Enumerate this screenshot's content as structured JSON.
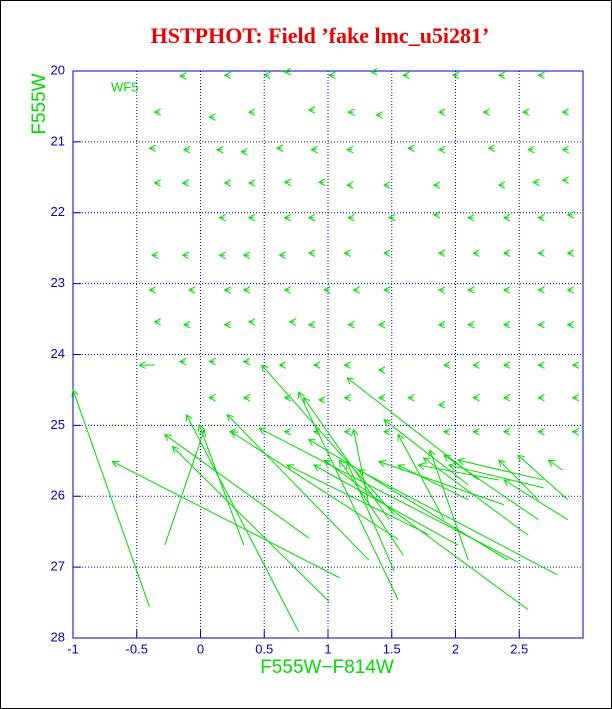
{
  "chart_data": {
    "type": "vector",
    "title": "HSTPHOT: Field ’fake lmc_u5i281’",
    "xlabel": "F555W−F814W",
    "ylabel": "F555W",
    "annotation": "WF5",
    "color": "#00dd00",
    "title_color": "#ee0000",
    "axis_color": "#0000cc",
    "grid": true,
    "xlim": [
      -1,
      3
    ],
    "ylim": [
      28,
      20
    ],
    "xticks": [
      -1,
      -0.5,
      0,
      0.5,
      1,
      1.5,
      2,
      2.5
    ],
    "yticks": [
      20,
      21,
      22,
      23,
      24,
      25,
      26,
      27,
      28
    ],
    "segments": [
      [
        -0.4,
        27.56,
        -1.0,
        24.5
      ],
      [
        1.09,
        27.15,
        -0.69,
        25.51
      ],
      [
        0.85,
        26.59,
        -0.28,
        25.13
      ],
      [
        1.01,
        27.49,
        -0.22,
        25.3
      ],
      [
        0.77,
        27.91,
        -0.11,
        24.85
      ],
      [
        0.34,
        26.69,
        -0.01,
        24.99
      ],
      [
        -0.28,
        26.69,
        0.03,
        25.06
      ],
      [
        1.32,
        26.9,
        0.21,
        24.85
      ],
      [
        1.52,
        26.26,
        0.48,
        24.15
      ],
      [
        2.49,
        26.93,
        0.46,
        25.04
      ],
      [
        1.55,
        26.61,
        0.24,
        25.09
      ],
      [
        1.55,
        27.46,
        0.77,
        24.53
      ],
      [
        1.48,
        26.33,
        0.81,
        24.61
      ],
      [
        1.79,
        26.54,
        0.68,
        25.56
      ],
      [
        2.41,
        26.9,
        0.85,
        25.2
      ],
      [
        2.02,
        26.69,
        0.89,
        25.56
      ],
      [
        2.57,
        27.6,
        0.97,
        25.49
      ],
      [
        2.18,
        25.77,
        1.15,
        24.33
      ],
      [
        1.59,
        26.83,
        1.09,
        25.49
      ],
      [
        1.52,
        27.06,
        1.15,
        25.52
      ],
      [
        1.32,
        26.12,
        1.2,
        25.06
      ],
      [
        2.8,
        27.11,
        1.24,
        25.63
      ],
      [
        2.38,
        26.12,
        1.4,
        25.51
      ],
      [
        2.1,
        25.84,
        1.44,
        24.92
      ],
      [
        1.91,
        26.33,
        1.55,
        25.13
      ],
      [
        2.1,
        26.05,
        1.55,
        25.56
      ],
      [
        2.34,
        25.77,
        1.71,
        25.56
      ],
      [
        2.57,
        26.55,
        1.75,
        25.46
      ],
      [
        2.1,
        26.9,
        1.8,
        25.35
      ],
      [
        2.65,
        26.33,
        1.91,
        25.42
      ],
      [
        2.69,
        25.88,
        1.95,
        25.56
      ],
      [
        2.69,
        25.77,
        2.02,
        25.49
      ],
      [
        2.65,
        26.05,
        2.34,
        25.49
      ],
      [
        2.88,
        26.33,
        2.38,
        25.77
      ],
      [
        2.84,
        25.63,
        2.73,
        25.49
      ],
      [
        2.88,
        26.05,
        2.49,
        25.42
      ],
      [
        -0.12,
        20.07,
        -0.16,
        20.07
      ],
      [
        0.23,
        20.06,
        0.19,
        20.06
      ],
      [
        0.54,
        20.06,
        0.5,
        20.06
      ],
      [
        0.7,
        20.01,
        0.66,
        20.01
      ],
      [
        1.05,
        20.06,
        1.01,
        20.06
      ],
      [
        1.38,
        20.01,
        1.34,
        20.01
      ],
      [
        1.63,
        20.06,
        1.59,
        20.06
      ],
      [
        2.02,
        20.06,
        1.98,
        20.06
      ],
      [
        2.38,
        20.06,
        2.34,
        20.06
      ],
      [
        2.69,
        20.06,
        2.65,
        20.06
      ],
      [
        -0.32,
        20.58,
        -0.36,
        20.58
      ],
      [
        0.11,
        20.65,
        0.07,
        20.65
      ],
      [
        0.42,
        20.58,
        0.38,
        20.58
      ],
      [
        0.89,
        20.55,
        0.85,
        20.55
      ],
      [
        1.2,
        20.58,
        1.16,
        20.58
      ],
      [
        1.42,
        20.62,
        1.38,
        20.62
      ],
      [
        1.91,
        20.58,
        1.87,
        20.58
      ],
      [
        2.26,
        20.58,
        2.22,
        20.58
      ],
      [
        2.57,
        20.58,
        2.53,
        20.58
      ],
      [
        2.88,
        20.58,
        2.84,
        20.58
      ],
      [
        -0.36,
        21.09,
        -0.4,
        21.09
      ],
      [
        -0.09,
        21.11,
        -0.13,
        21.11
      ],
      [
        0.17,
        21.11,
        0.13,
        21.11
      ],
      [
        0.36,
        21.14,
        0.32,
        21.14
      ],
      [
        0.64,
        21.09,
        0.6,
        21.09
      ],
      [
        0.91,
        21.11,
        0.87,
        21.11
      ],
      [
        1.19,
        21.11,
        1.15,
        21.11
      ],
      [
        1.67,
        21.09,
        1.63,
        21.09
      ],
      [
        1.91,
        21.11,
        1.87,
        21.11
      ],
      [
        2.3,
        21.09,
        2.26,
        21.09
      ],
      [
        2.61,
        21.11,
        2.57,
        21.11
      ],
      [
        2.88,
        21.11,
        2.84,
        21.11
      ],
      [
        -0.32,
        21.58,
        -0.36,
        21.58
      ],
      [
        -0.1,
        21.58,
        -0.14,
        21.58
      ],
      [
        0.23,
        21.58,
        0.19,
        21.58
      ],
      [
        0.42,
        21.58,
        0.38,
        21.58
      ],
      [
        0.7,
        21.57,
        0.66,
        21.57
      ],
      [
        0.97,
        21.57,
        0.93,
        21.57
      ],
      [
        1.19,
        21.61,
        1.15,
        21.61
      ],
      [
        1.48,
        21.61,
        1.44,
        21.61
      ],
      [
        1.87,
        21.61,
        1.83,
        21.61
      ],
      [
        2.38,
        21.61,
        2.34,
        21.61
      ],
      [
        2.65,
        21.57,
        2.61,
        21.57
      ],
      [
        2.88,
        21.54,
        2.84,
        21.54
      ],
      [
        0.19,
        22.07,
        0.15,
        22.07
      ],
      [
        0.42,
        22.07,
        0.38,
        22.07
      ],
      [
        0.7,
        22.07,
        0.66,
        22.07
      ],
      [
        0.89,
        22.07,
        0.85,
        22.07
      ],
      [
        1.2,
        22.07,
        1.16,
        22.07
      ],
      [
        1.52,
        22.07,
        1.48,
        22.07
      ],
      [
        1.87,
        22.03,
        1.83,
        22.03
      ],
      [
        2.14,
        22.07,
        2.1,
        22.07
      ],
      [
        2.42,
        22.07,
        2.38,
        22.07
      ],
      [
        2.69,
        22.07,
        2.65,
        22.07
      ],
      [
        2.92,
        22.03,
        2.88,
        22.03
      ],
      [
        -0.34,
        22.6,
        -0.38,
        22.6
      ],
      [
        -0.1,
        22.6,
        -0.14,
        22.6
      ],
      [
        0.19,
        22.6,
        0.15,
        22.6
      ],
      [
        0.38,
        22.6,
        0.34,
        22.6
      ],
      [
        0.66,
        22.6,
        0.62,
        22.6
      ],
      [
        0.89,
        22.57,
        0.85,
        22.57
      ],
      [
        1.17,
        22.57,
        1.13,
        22.57
      ],
      [
        1.48,
        22.57,
        1.44,
        22.57
      ],
      [
        1.91,
        22.57,
        1.87,
        22.57
      ],
      [
        2.18,
        22.57,
        2.14,
        22.57
      ],
      [
        2.42,
        22.57,
        2.38,
        22.57
      ],
      [
        2.69,
        22.57,
        2.65,
        22.57
      ],
      [
        2.92,
        22.57,
        2.88,
        22.57
      ],
      [
        -0.36,
        23.09,
        -0.4,
        23.09
      ],
      [
        -0.05,
        23.09,
        -0.09,
        23.09
      ],
      [
        0.23,
        23.09,
        0.19,
        23.09
      ],
      [
        0.38,
        23.09,
        0.34,
        23.09
      ],
      [
        0.7,
        23.09,
        0.66,
        23.09
      ],
      [
        1.01,
        23.09,
        0.97,
        23.09
      ],
      [
        1.24,
        23.09,
        1.2,
        23.09
      ],
      [
        1.48,
        23.09,
        1.44,
        23.09
      ],
      [
        1.91,
        23.09,
        1.87,
        23.09
      ],
      [
        2.14,
        23.09,
        2.1,
        23.09
      ],
      [
        2.42,
        23.09,
        2.38,
        23.09
      ],
      [
        2.69,
        23.09,
        2.65,
        23.09
      ],
      [
        2.92,
        23.09,
        2.88,
        23.09
      ],
      [
        -0.32,
        23.54,
        -0.36,
        23.54
      ],
      [
        -0.09,
        23.58,
        -0.13,
        23.58
      ],
      [
        0.23,
        23.58,
        0.19,
        23.58
      ],
      [
        0.42,
        23.54,
        0.38,
        23.54
      ],
      [
        0.74,
        23.54,
        0.7,
        23.54
      ],
      [
        0.89,
        23.58,
        0.85,
        23.58
      ],
      [
        1.2,
        23.58,
        1.16,
        23.58
      ],
      [
        1.44,
        23.58,
        1.4,
        23.58
      ],
      [
        1.91,
        23.58,
        1.87,
        23.58
      ],
      [
        2.14,
        23.58,
        2.1,
        23.58
      ],
      [
        2.42,
        23.58,
        2.38,
        23.58
      ],
      [
        2.69,
        23.58,
        2.65,
        23.58
      ],
      [
        2.92,
        23.58,
        2.88,
        23.58
      ],
      [
        -0.36,
        24.15,
        -0.48,
        24.15
      ],
      [
        -0.12,
        24.1,
        -0.16,
        24.1
      ],
      [
        0.11,
        24.1,
        0.07,
        24.1
      ],
      [
        0.38,
        24.1,
        0.34,
        24.1
      ],
      [
        0.66,
        24.15,
        0.62,
        24.15
      ],
      [
        0.93,
        24.15,
        0.89,
        24.15
      ],
      [
        1.17,
        24.15,
        1.13,
        24.15
      ],
      [
        1.44,
        24.22,
        1.4,
        24.22
      ],
      [
        1.95,
        24.15,
        1.91,
        24.15
      ],
      [
        2.18,
        24.15,
        2.14,
        24.15
      ],
      [
        2.42,
        24.15,
        2.38,
        24.15
      ],
      [
        2.69,
        24.15,
        2.65,
        24.15
      ],
      [
        2.96,
        24.15,
        2.92,
        24.15
      ],
      [
        0.11,
        24.61,
        0.07,
        24.61
      ],
      [
        0.38,
        24.61,
        0.34,
        24.61
      ],
      [
        0.7,
        24.61,
        0.66,
        24.61
      ],
      [
        0.97,
        24.64,
        0.93,
        24.64
      ],
      [
        1.17,
        24.61,
        1.13,
        24.61
      ],
      [
        1.44,
        24.61,
        1.4,
        24.61
      ],
      [
        1.67,
        24.61,
        1.63,
        24.61
      ],
      [
        1.91,
        24.71,
        1.87,
        24.71
      ],
      [
        2.18,
        24.61,
        2.14,
        24.61
      ],
      [
        2.42,
        24.61,
        2.38,
        24.61
      ],
      [
        2.69,
        24.61,
        2.65,
        24.61
      ],
      [
        2.96,
        24.61,
        2.92,
        24.61
      ],
      [
        0.27,
        25.09,
        0.23,
        25.09
      ],
      [
        0.7,
        25.09,
        0.66,
        25.09
      ],
      [
        0.93,
        25.09,
        0.89,
        25.09
      ],
      [
        1.17,
        25.09,
        1.13,
        25.09
      ],
      [
        1.48,
        25.09,
        1.44,
        25.09
      ],
      [
        1.95,
        25.09,
        1.91,
        25.09
      ],
      [
        2.18,
        25.09,
        2.14,
        25.09
      ],
      [
        2.42,
        25.09,
        2.38,
        25.09
      ],
      [
        2.69,
        25.09,
        2.65,
        25.09
      ],
      [
        2.96,
        25.09,
        2.92,
        25.09
      ]
    ]
  }
}
